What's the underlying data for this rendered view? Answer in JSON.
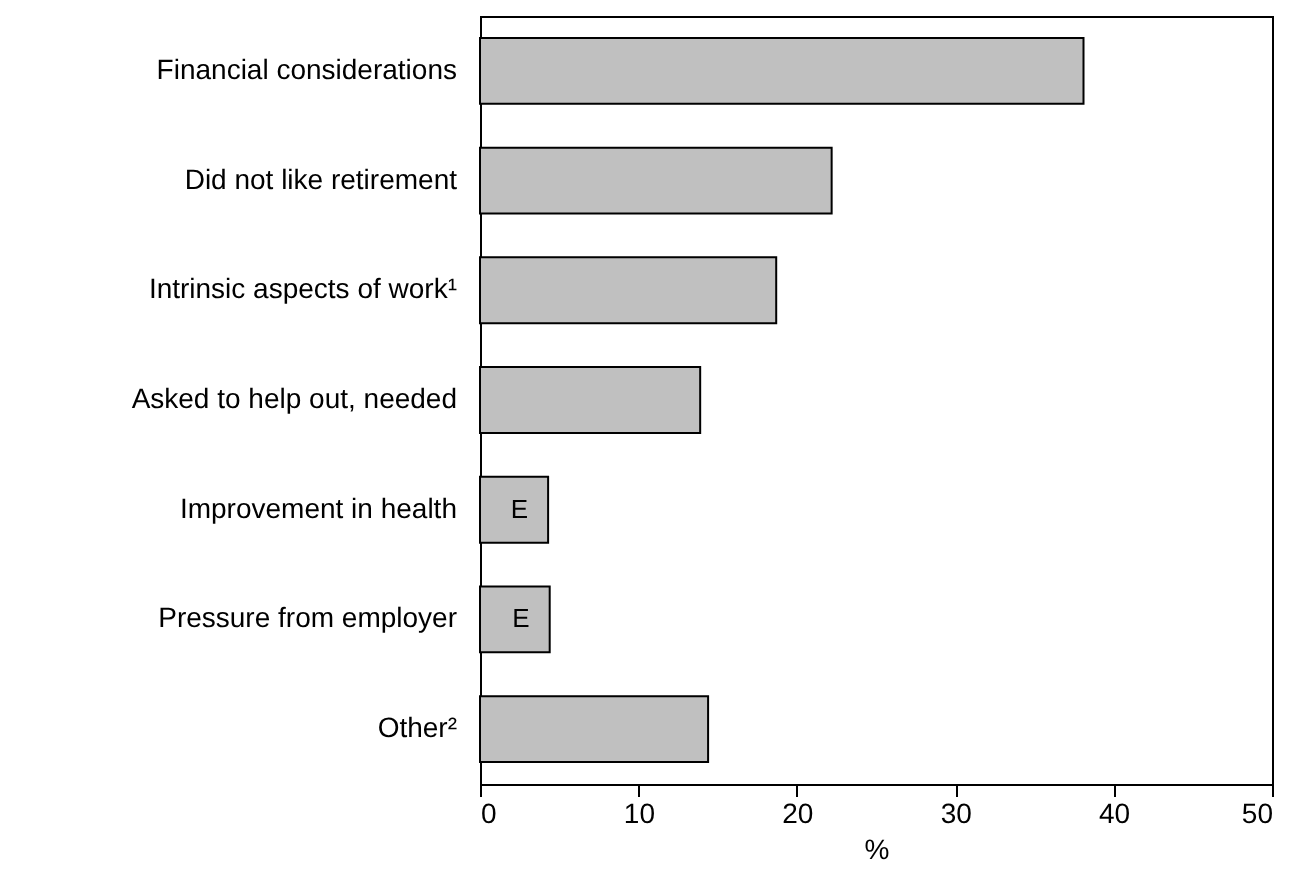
{
  "chart_data": {
    "type": "bar",
    "orientation": "horizontal",
    "xlabel": "%",
    "categories": [
      "Financial considerations",
      "Did not like retirement",
      "Intrinsic aspects of work¹",
      "Asked to help out, needed",
      "Improvement in health",
      "Pressure from employer",
      "Other²"
    ],
    "values": [
      38.1,
      22.2,
      18.7,
      13.9,
      4.3,
      4.4,
      14.4
    ],
    "value_labels": [
      null,
      null,
      null,
      null,
      "E",
      "E",
      null
    ],
    "color": "#c0c0c0",
    "xlim": [
      0,
      50
    ],
    "xticks": [
      0,
      10,
      20,
      30,
      40,
      50
    ]
  }
}
